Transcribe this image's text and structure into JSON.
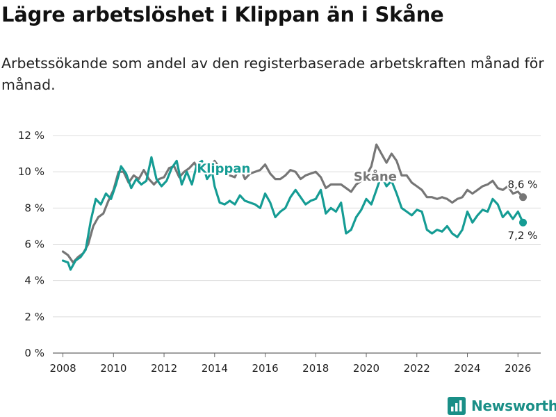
{
  "title": "Lägre arbetslöshet i Klippan än i Skåne",
  "subtitle": "Arbetssökande som andel av den registerbaserade arbetskraften månad för månad.",
  "brand": {
    "name": "Newsworthy",
    "icon": "bar-chart-icon",
    "color": "#1a8f87"
  },
  "chart_data": {
    "type": "line",
    "title": "Lägre arbetslöshet i Klippan än i Skåne",
    "xlabel": "",
    "ylabel": "",
    "xlim": [
      2007.6,
      2026.9
    ],
    "ylim": [
      0,
      12
    ],
    "grid": true,
    "x_ticks": [
      "2008",
      "2010",
      "2012",
      "2014",
      "2016",
      "2018",
      "2020",
      "2022",
      "2024",
      "2026"
    ],
    "y_ticks": [
      "0 %",
      "2 %",
      "4 %",
      "6 %",
      "8 %",
      "10 %",
      "12 %"
    ],
    "series": [
      {
        "name": "Skåne",
        "color": "#767676",
        "label": "Skåne",
        "last_label": "8,6 %",
        "points": [
          [
            2008.0,
            5.6
          ],
          [
            2008.2,
            5.4
          ],
          [
            2008.4,
            5.0
          ],
          [
            2008.6,
            5.3
          ],
          [
            2008.8,
            5.5
          ],
          [
            2009.0,
            6.0
          ],
          [
            2009.2,
            7.0
          ],
          [
            2009.4,
            7.5
          ],
          [
            2009.6,
            7.7
          ],
          [
            2009.8,
            8.4
          ],
          [
            2010.0,
            9.0
          ],
          [
            2010.2,
            10.0
          ],
          [
            2010.4,
            10.0
          ],
          [
            2010.6,
            9.4
          ],
          [
            2010.8,
            9.8
          ],
          [
            2011.0,
            9.6
          ],
          [
            2011.2,
            10.1
          ],
          [
            2011.4,
            9.6
          ],
          [
            2011.6,
            9.3
          ],
          [
            2011.8,
            9.6
          ],
          [
            2012.0,
            9.7
          ],
          [
            2012.2,
            10.2
          ],
          [
            2012.4,
            10.3
          ],
          [
            2012.6,
            9.7
          ],
          [
            2012.8,
            10.0
          ],
          [
            2013.0,
            10.2
          ],
          [
            2013.2,
            10.5
          ],
          [
            2013.4,
            10.0
          ],
          [
            2013.6,
            10.4
          ],
          [
            2013.8,
            10.2
          ],
          [
            2014.0,
            10.6
          ],
          [
            2014.2,
            10.2
          ],
          [
            2014.4,
            10.0
          ],
          [
            2014.6,
            9.8
          ],
          [
            2014.8,
            9.7
          ],
          [
            2015.0,
            10.3
          ],
          [
            2015.2,
            9.6
          ],
          [
            2015.4,
            9.9
          ],
          [
            2015.6,
            10.0
          ],
          [
            2015.8,
            10.1
          ],
          [
            2016.0,
            10.4
          ],
          [
            2016.2,
            9.9
          ],
          [
            2016.4,
            9.6
          ],
          [
            2016.6,
            9.6
          ],
          [
            2016.8,
            9.8
          ],
          [
            2017.0,
            10.1
          ],
          [
            2017.2,
            10.0
          ],
          [
            2017.4,
            9.6
          ],
          [
            2017.6,
            9.8
          ],
          [
            2017.8,
            9.9
          ],
          [
            2018.0,
            10.0
          ],
          [
            2018.2,
            9.7
          ],
          [
            2018.4,
            9.1
          ],
          [
            2018.6,
            9.3
          ],
          [
            2018.8,
            9.3
          ],
          [
            2019.0,
            9.3
          ],
          [
            2019.2,
            9.1
          ],
          [
            2019.4,
            8.9
          ],
          [
            2019.6,
            9.3
          ],
          [
            2019.8,
            9.5
          ],
          [
            2020.0,
            9.8
          ],
          [
            2020.2,
            10.3
          ],
          [
            2020.4,
            11.5
          ],
          [
            2020.6,
            11.0
          ],
          [
            2020.8,
            10.5
          ],
          [
            2021.0,
            11.0
          ],
          [
            2021.2,
            10.6
          ],
          [
            2021.4,
            9.8
          ],
          [
            2021.6,
            9.8
          ],
          [
            2021.8,
            9.4
          ],
          [
            2022.0,
            9.2
          ],
          [
            2022.2,
            9.0
          ],
          [
            2022.4,
            8.6
          ],
          [
            2022.6,
            8.6
          ],
          [
            2022.8,
            8.5
          ],
          [
            2023.0,
            8.6
          ],
          [
            2023.2,
            8.5
          ],
          [
            2023.4,
            8.3
          ],
          [
            2023.6,
            8.5
          ],
          [
            2023.8,
            8.6
          ],
          [
            2024.0,
            9.0
          ],
          [
            2024.2,
            8.8
          ],
          [
            2024.4,
            9.0
          ],
          [
            2024.6,
            9.2
          ],
          [
            2024.8,
            9.3
          ],
          [
            2025.0,
            9.5
          ],
          [
            2025.2,
            9.1
          ],
          [
            2025.4,
            9.0
          ],
          [
            2025.6,
            9.2
          ],
          [
            2025.8,
            8.8
          ],
          [
            2026.0,
            8.9
          ],
          [
            2026.2,
            8.6
          ]
        ]
      },
      {
        "name": "Klippan",
        "color": "#159c94",
        "label": "Klippan",
        "last_label": "7,2 %",
        "points": [
          [
            2008.0,
            5.1
          ],
          [
            2008.2,
            5.0
          ],
          [
            2008.3,
            4.6
          ],
          [
            2008.5,
            5.1
          ],
          [
            2008.7,
            5.3
          ],
          [
            2008.9,
            5.7
          ],
          [
            2009.1,
            7.3
          ],
          [
            2009.3,
            8.5
          ],
          [
            2009.5,
            8.2
          ],
          [
            2009.7,
            8.8
          ],
          [
            2009.9,
            8.5
          ],
          [
            2010.1,
            9.3
          ],
          [
            2010.3,
            10.3
          ],
          [
            2010.5,
            9.9
          ],
          [
            2010.7,
            9.1
          ],
          [
            2010.9,
            9.6
          ],
          [
            2011.1,
            9.3
          ],
          [
            2011.3,
            9.5
          ],
          [
            2011.5,
            10.8
          ],
          [
            2011.7,
            9.6
          ],
          [
            2011.9,
            9.2
          ],
          [
            2012.1,
            9.5
          ],
          [
            2012.3,
            10.2
          ],
          [
            2012.5,
            10.6
          ],
          [
            2012.7,
            9.3
          ],
          [
            2012.9,
            10.0
          ],
          [
            2013.1,
            9.3
          ],
          [
            2013.3,
            10.4
          ],
          [
            2013.5,
            10.6
          ],
          [
            2013.7,
            9.6
          ],
          [
            2013.9,
            10.0
          ],
          [
            2014.0,
            9.2
          ],
          [
            2014.2,
            8.3
          ],
          [
            2014.4,
            8.2
          ],
          [
            2014.6,
            8.4
          ],
          [
            2014.8,
            8.2
          ],
          [
            2015.0,
            8.7
          ],
          [
            2015.2,
            8.4
          ],
          [
            2015.4,
            8.3
          ],
          [
            2015.6,
            8.2
          ],
          [
            2015.8,
            8.0
          ],
          [
            2016.0,
            8.8
          ],
          [
            2016.2,
            8.3
          ],
          [
            2016.4,
            7.5
          ],
          [
            2016.6,
            7.8
          ],
          [
            2016.8,
            8.0
          ],
          [
            2017.0,
            8.6
          ],
          [
            2017.2,
            9.0
          ],
          [
            2017.4,
            8.6
          ],
          [
            2017.6,
            8.2
          ],
          [
            2017.8,
            8.4
          ],
          [
            2018.0,
            8.5
          ],
          [
            2018.2,
            9.0
          ],
          [
            2018.4,
            7.7
          ],
          [
            2018.6,
            8.0
          ],
          [
            2018.8,
            7.8
          ],
          [
            2019.0,
            8.3
          ],
          [
            2019.2,
            6.6
          ],
          [
            2019.4,
            6.8
          ],
          [
            2019.6,
            7.5
          ],
          [
            2019.8,
            7.9
          ],
          [
            2020.0,
            8.5
          ],
          [
            2020.2,
            8.2
          ],
          [
            2020.4,
            9.0
          ],
          [
            2020.6,
            9.8
          ],
          [
            2020.8,
            9.2
          ],
          [
            2021.0,
            9.5
          ],
          [
            2021.2,
            8.8
          ],
          [
            2021.4,
            8.0
          ],
          [
            2021.6,
            7.8
          ],
          [
            2021.8,
            7.6
          ],
          [
            2022.0,
            7.9
          ],
          [
            2022.2,
            7.8
          ],
          [
            2022.4,
            6.8
          ],
          [
            2022.6,
            6.6
          ],
          [
            2022.8,
            6.8
          ],
          [
            2023.0,
            6.7
          ],
          [
            2023.2,
            7.0
          ],
          [
            2023.4,
            6.6
          ],
          [
            2023.6,
            6.4
          ],
          [
            2023.8,
            6.8
          ],
          [
            2024.0,
            7.8
          ],
          [
            2024.2,
            7.2
          ],
          [
            2024.4,
            7.6
          ],
          [
            2024.6,
            7.9
          ],
          [
            2024.8,
            7.8
          ],
          [
            2025.0,
            8.5
          ],
          [
            2025.2,
            8.2
          ],
          [
            2025.4,
            7.5
          ],
          [
            2025.6,
            7.8
          ],
          [
            2025.8,
            7.4
          ],
          [
            2026.0,
            7.8
          ],
          [
            2026.2,
            7.2
          ]
        ]
      }
    ]
  }
}
